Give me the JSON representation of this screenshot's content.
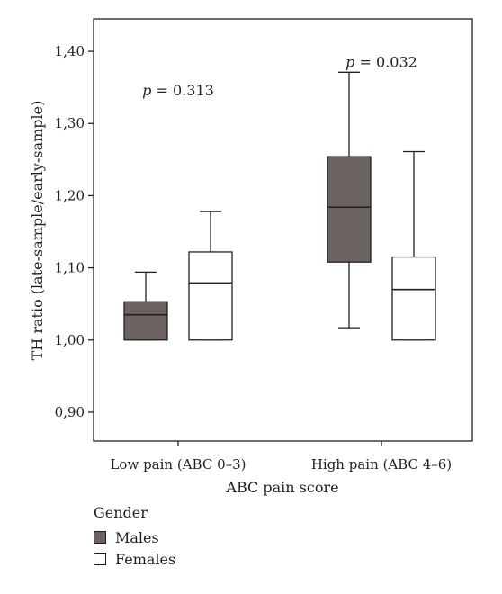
{
  "chart_data": {
    "type": "boxplot",
    "xlabel": "ABC pain score",
    "ylabel": "TH ratio (late-sample/early-sample)",
    "ylim": [
      0.86,
      1.445
    ],
    "yticks": [
      "0,90",
      "1,00",
      "1,10",
      "1,20",
      "1,30",
      "1,40"
    ],
    "ytick_values": [
      0.9,
      1.0,
      1.1,
      1.2,
      1.3,
      1.4
    ],
    "categories": [
      "Low pain (ABC 0–3)",
      "High pain (ABC 4–6)"
    ],
    "legend": {
      "title": "Gender",
      "position": "bottom-left"
    },
    "grid": false,
    "series": [
      {
        "name": "Males",
        "color": "#6b6262",
        "boxes": [
          {
            "min": 1.0,
            "q1": 1.0,
            "median": 1.035,
            "q3": 1.053,
            "max": 1.094
          },
          {
            "min": 1.017,
            "q1": 1.108,
            "median": 1.184,
            "q3": 1.254,
            "max": 1.371
          }
        ]
      },
      {
        "name": "Females",
        "color": "#ffffff",
        "boxes": [
          {
            "min": 1.0,
            "q1": 1.0,
            "median": 1.079,
            "q3": 1.122,
            "max": 1.178
          },
          {
            "min": 1.0,
            "q1": 1.0,
            "median": 1.07,
            "q3": 1.115,
            "max": 1.261
          }
        ]
      }
    ],
    "annotations": [
      {
        "category": 0,
        "p": "p",
        "value": " = 0.313",
        "y": 1.339
      },
      {
        "category": 1,
        "p": "p",
        "value": " = 0.032",
        "y": 1.378
      }
    ]
  }
}
